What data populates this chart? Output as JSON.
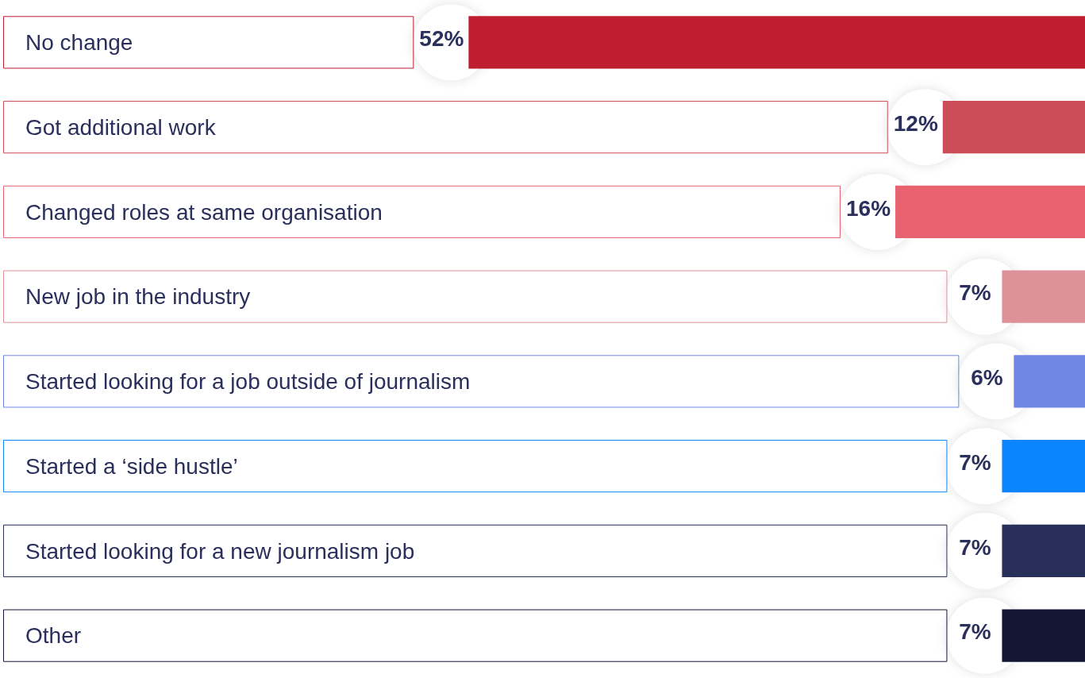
{
  "chart_data": {
    "type": "bar",
    "orientation": "horizontal",
    "categories": [
      "No change",
      "Got additional work",
      "Changed roles at same organisation",
      "New job in the industry",
      "Started looking for a job outside of journalism",
      "Started a ‘side hustle’",
      "Started looking for a new journalism job",
      "Other"
    ],
    "values": [
      52,
      12,
      16,
      7,
      6,
      7,
      7,
      7
    ],
    "value_labels": [
      "52%",
      "12%",
      "16%",
      "7%",
      "6%",
      "7%",
      "7%",
      "7%"
    ],
    "colors": [
      "#be1e2f",
      "#cc4d57",
      "#e8636f",
      "#de9199",
      "#6f86e3",
      "#0a84ff",
      "#272f5a",
      "#121633"
    ],
    "tick_labels": false,
    "legend": false
  }
}
